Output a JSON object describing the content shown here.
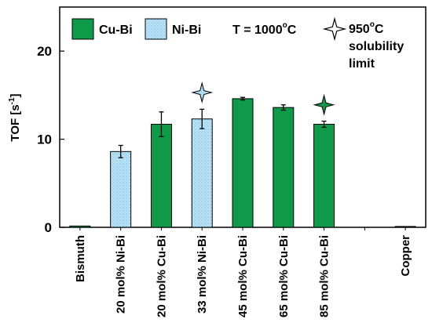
{
  "chart_data": {
    "type": "bar",
    "ylabel_main": "TOF [s",
    "ylabel_sup": "-1",
    "ylabel_end": "]",
    "ylim": [
      0,
      25
    ],
    "yticks": [
      0,
      10,
      20
    ],
    "categories": [
      "Bismuth",
      "20 mol% Ni-Bi",
      "20 mol% Cu-Bi",
      "33 mol% Ni-Bi",
      "45 mol% Cu-Bi",
      "65 mol% Cu-Bi",
      "85 mol% Cu-Bi",
      "",
      "Copper"
    ],
    "bars": [
      {
        "category": "Bismuth",
        "value": 0.15,
        "error": 0,
        "series": "Cu-Bi"
      },
      {
        "category": "20 mol% Ni-Bi",
        "value": 8.6,
        "error": 0.7,
        "series": "Ni-Bi"
      },
      {
        "category": "20 mol% Cu-Bi",
        "value": 11.7,
        "error": 1.4,
        "series": "Cu-Bi"
      },
      {
        "category": "33 mol% Ni-Bi",
        "value": 12.3,
        "error": 1.1,
        "series": "Ni-Bi"
      },
      {
        "category": "45 mol% Cu-Bi",
        "value": 14.6,
        "error": 0.15,
        "series": "Cu-Bi"
      },
      {
        "category": "65 mol% Cu-Bi",
        "value": 13.6,
        "error": 0.3,
        "series": "Cu-Bi"
      },
      {
        "category": "85 mol% Cu-Bi",
        "value": 11.7,
        "error": 0.35,
        "series": "Cu-Bi"
      },
      {
        "category": "Copper",
        "value": 0.1,
        "error": 0,
        "series": "Cu-Bi"
      }
    ],
    "legend": [
      {
        "name": "Cu-Bi",
        "color": "#0f9a4a",
        "pattern": "solid"
      },
      {
        "name": "Ni-Bi",
        "color": "#a8d8f2",
        "pattern": "dotted"
      }
    ],
    "temperature_label_prefix": "T = 1000",
    "temperature_label_sup": "o",
    "temperature_label_suffix": "C",
    "star_legend_line1_prefix": "950",
    "star_legend_line1_sup": "o",
    "star_legend_line1_suffix": "C",
    "star_legend_line2": "solubility",
    "star_legend_line3": "limit",
    "star_markers": [
      {
        "category": "33 mol% Ni-Bi",
        "value": 15.3,
        "color": "#a8d8f2"
      },
      {
        "category": "85 mol% Cu-Bi",
        "value": 13.9,
        "color": "#0f9a4a"
      }
    ],
    "legend_placement": "top",
    "grid": false
  }
}
